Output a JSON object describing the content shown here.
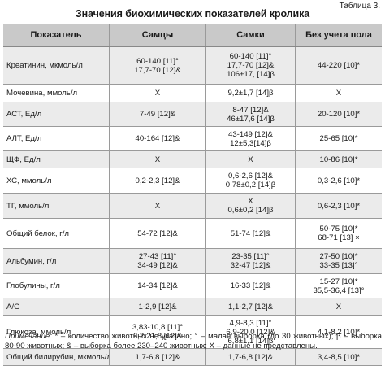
{
  "table_number": "Таблица 3.",
  "title": "Значения биохимических показателей кролика",
  "headers": [
    "Показатель",
    "Самцы",
    "Самки",
    "Без учета пола"
  ],
  "rows": [
    {
      "name": "Креатинин, мкмоль/л",
      "male": [
        "60-140 [11]°",
        "17,7-70 [12]&"
      ],
      "female": [
        "60-140 [11]°",
        "17,7-70 [12]&",
        "106±17, [14]β"
      ],
      "all": [
        "44-220 [10]*"
      ],
      "h": 45
    },
    {
      "name": "Мочевина, ммоль/л",
      "male": [
        "X"
      ],
      "female": [
        "9,2±1,7 [14]β"
      ],
      "all": [
        "X"
      ],
      "h": 21
    },
    {
      "name": "АСТ, Ед/л",
      "male": [
        "7-49 [12]&"
      ],
      "female": [
        "8-47 [12]&",
        "46±17,6 [14]β"
      ],
      "all": [
        "20-120 [10]*"
      ],
      "h": 29
    },
    {
      "name": "АЛТ, Ед/л",
      "male": [
        "40-164 [12]&"
      ],
      "female": [
        "43-149 [12]&",
        "12±5,3[14]β"
      ],
      "all": [
        "25-65 [10]*"
      ],
      "h": 29
    },
    {
      "name": "ЩФ, Ед/л",
      "male": [
        "X"
      ],
      "female": [
        "X"
      ],
      "all": [
        "10-86 [10]*"
      ],
      "h": 20
    },
    {
      "name": "ХС, ммоль/л",
      "male": [
        "0,2-2,3 [12]&"
      ],
      "female": [
        "0,6-2,6 [12]&",
        "0,78±0,2 [14]β"
      ],
      "all": [
        "0,3-2,6 [10]*"
      ],
      "h": 30
    },
    {
      "name": "ТГ, ммоль/л",
      "male": [
        "X"
      ],
      "female": [
        "X",
        "0,6±0,2 [14]β"
      ],
      "all": [
        "0,6-2,3 [10]*"
      ],
      "h": 30
    },
    {
      "name": "Общий белок, г/л",
      "male": [
        "54-72 [12]&"
      ],
      "female": [
        "51-74 [12]&"
      ],
      "all": [
        "50-75 [10]*",
        "68-71 [13] ×"
      ],
      "h": 36
    },
    {
      "name": "Альбумин, г/л",
      "male": [
        "27-43 [11]°",
        "34-49 [12]&"
      ],
      "female": [
        "23-35 [11]°",
        "32-47 [12]&"
      ],
      "all": [
        "27-50 [10]*",
        "33-35 [13]°"
      ],
      "h": 30
    },
    {
      "name": "Глобулины, г/л",
      "male": [
        "14-34 [12]&"
      ],
      "female": [
        "16-33 [12]&"
      ],
      "all": [
        "15-27 [10]*",
        "35,5-36,4 [13]°"
      ],
      "h": 29
    },
    {
      "name": "A/G",
      "male": [
        "1-2,9 [12]&"
      ],
      "female": [
        "1,1-2,7 [12]&"
      ],
      "all": [
        "X"
      ],
      "h": 20
    },
    {
      "name": "Глюкоза, ммоль/л",
      "male": [
        "3,83-10,8 [11]°",
        "6,2-21,8 [12]&"
      ],
      "female": [
        "4,9-8,3 [11]°",
        "6,9-20,0 [12]&",
        "6,8±1,1 [14]β"
      ],
      "all": [
        "4,1-8,2 [10]*"
      ],
      "h": 40
    },
    {
      "name": "Общий билирубин, мкмоль/л",
      "male": [
        "1,7-6,8 [12]&"
      ],
      "female": [
        "1,7-6,8 [12]&"
      ],
      "all": [
        "3,4-8,5 [10]*"
      ],
      "h": 20
    }
  ],
  "note": {
    "label": "Примечание:",
    "text": " * – количество животных не указано; ° – малая выборка (до 30 животных); β – выборка 80-90 животных; & – выборка более 230–240 животных; X – данные не представлены."
  }
}
